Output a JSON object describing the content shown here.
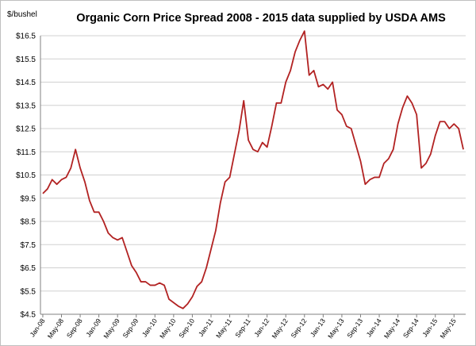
{
  "chart_data": {
    "type": "line",
    "title": "Organic Corn Price Spread 2008 - 2015 data supplied by USDA AMS",
    "ylabel": "$/bushel",
    "ylim": [
      4.5,
      16.5
    ],
    "yticks": [
      "$4.5",
      "$5.5",
      "$6.5",
      "$7.5",
      "$8.5",
      "$9.5",
      "$10.5",
      "$11.5",
      "$12.5",
      "$13.5",
      "$14.5",
      "$15.5",
      "$16.5"
    ],
    "xtick_labels": [
      "Jan-08",
      "May-08",
      "Sep-08",
      "Jan-09",
      "May-09",
      "Sep-09",
      "Jan-10",
      "May-10",
      "Sep-10",
      "Jan-11",
      "May-11",
      "Sep-11",
      "Jan-12",
      "May-12",
      "Sep-12",
      "Jan-13",
      "May-13",
      "Sep-13",
      "Jan-14",
      "May-14",
      "Sep-14",
      "Jan-15",
      "May-15"
    ],
    "x_start": "2008-01",
    "x_end": "2015-08",
    "grid": {
      "horizontal": true,
      "vertical": false
    },
    "line_color": "#b22222",
    "series": [
      {
        "name": "",
        "values": [
          9.7,
          9.9,
          10.3,
          10.1,
          10.3,
          10.4,
          10.8,
          11.6,
          10.8,
          10.2,
          9.4,
          8.9,
          8.9,
          8.5,
          8.0,
          7.8,
          7.7,
          7.8,
          7.2,
          6.6,
          6.3,
          5.9,
          5.9,
          5.75,
          5.75,
          5.85,
          5.75,
          5.15,
          5.0,
          4.85,
          4.75,
          4.95,
          5.25,
          5.7,
          5.9,
          6.5,
          7.3,
          8.1,
          9.3,
          10.2,
          10.4,
          11.4,
          12.4,
          13.7,
          12.0,
          11.6,
          11.5,
          11.9,
          11.7,
          12.6,
          13.6,
          13.6,
          14.5,
          15.0,
          15.8,
          16.3,
          16.7,
          14.8,
          15.0,
          14.3,
          14.4,
          14.2,
          14.5,
          13.3,
          13.1,
          12.6,
          12.5,
          11.8,
          11.1,
          10.1,
          10.3,
          10.4,
          10.4,
          11.0,
          11.2,
          11.6,
          12.7,
          13.4,
          13.9,
          13.6,
          13.1,
          10.8,
          11.0,
          11.4,
          12.2,
          12.8,
          12.8,
          12.5,
          12.7,
          12.5,
          11.6
        ]
      }
    ]
  }
}
